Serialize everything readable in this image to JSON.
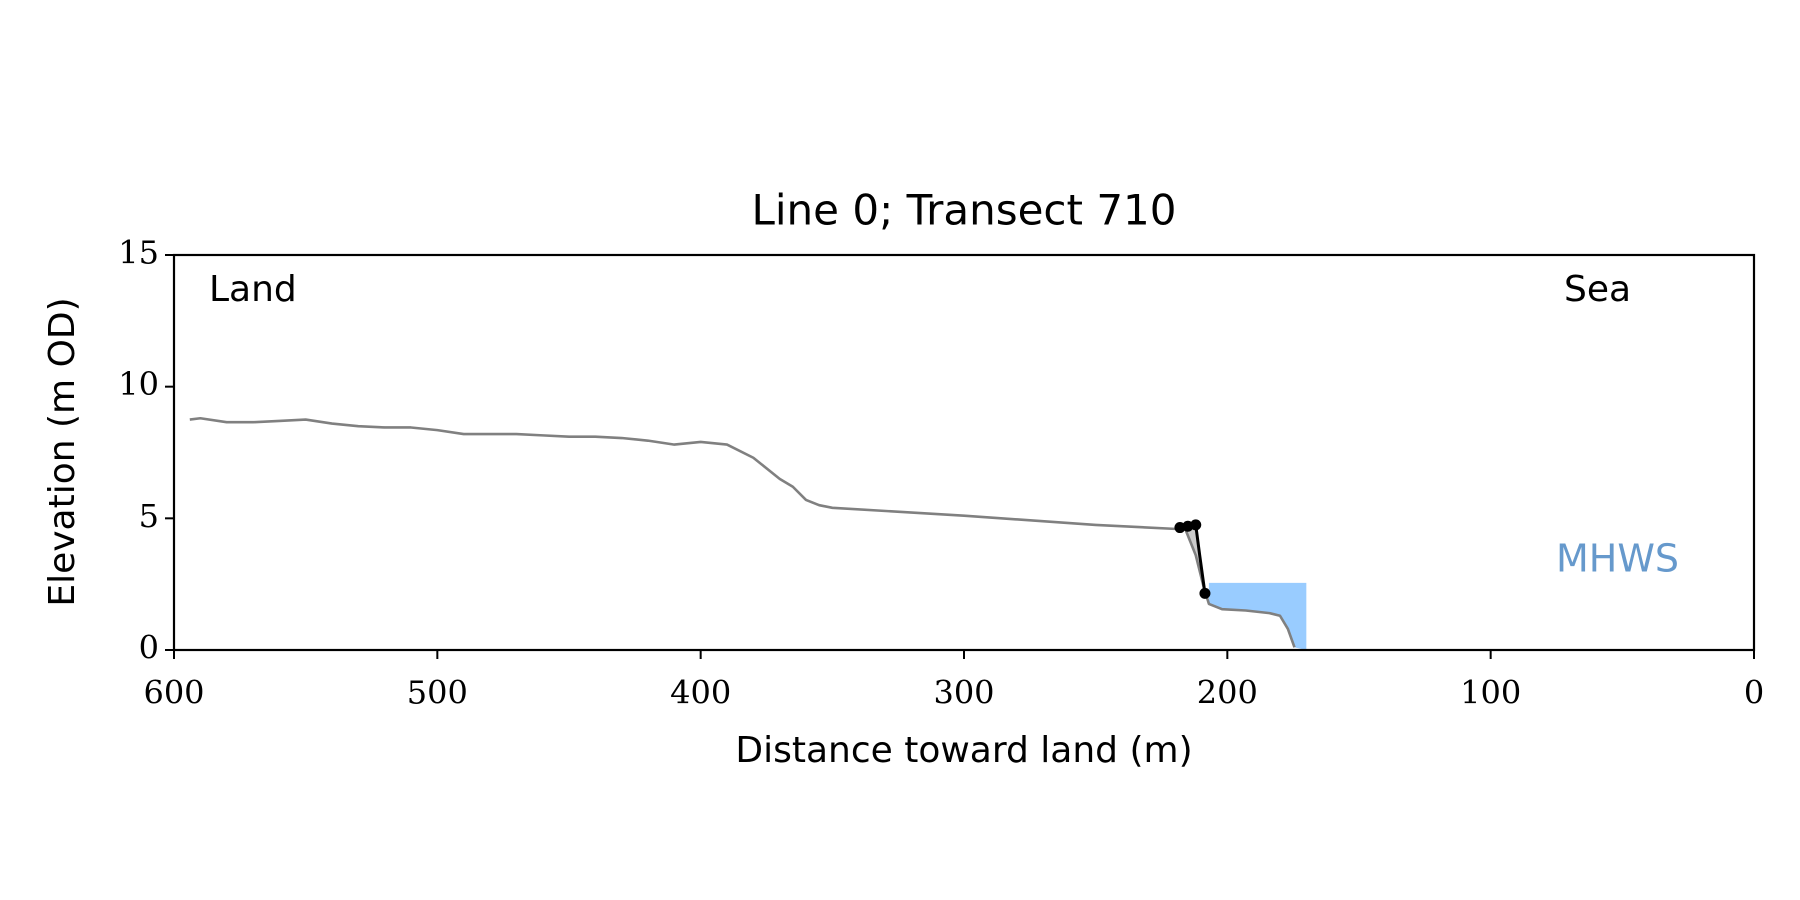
{
  "chart_data": {
    "type": "line",
    "title": "Line 0; Transect 710",
    "xlabel": "Distance toward land (m)",
    "ylabel": "Elevation (m OD)",
    "xlim": [
      600,
      0
    ],
    "xticks": [
      600,
      500,
      400,
      300,
      200,
      100,
      0
    ],
    "ylim": [
      0,
      15
    ],
    "yticks": [
      0,
      5,
      10,
      15
    ],
    "annotations": [
      "Land",
      "Sea"
    ],
    "series": [
      {
        "name": "profile",
        "color": "#808080",
        "x": [
          594,
          590,
          580,
          570,
          560,
          550,
          540,
          530,
          520,
          510,
          500,
          490,
          480,
          470,
          460,
          450,
          440,
          430,
          420,
          410,
          400,
          390,
          380,
          370,
          365,
          360,
          355,
          350,
          300,
          250,
          220,
          216,
          212,
          209,
          207,
          202,
          193,
          184,
          180,
          177,
          174.5
        ],
        "values": [
          8.75,
          8.8,
          8.65,
          8.65,
          8.7,
          8.75,
          8.6,
          8.5,
          8.45,
          8.45,
          8.35,
          8.2,
          8.2,
          8.2,
          8.15,
          8.1,
          8.1,
          8.05,
          7.95,
          7.8,
          7.9,
          7.8,
          7.3,
          6.5,
          6.2,
          5.7,
          5.5,
          5.4,
          5.1,
          4.75,
          4.6,
          4.6,
          3.6,
          2.4,
          1.75,
          1.55,
          1.5,
          1.4,
          1.3,
          0.8,
          0.1
        ]
      },
      {
        "name": "cliff",
        "color": "#000000",
        "x": [
          218,
          215,
          212,
          210.5,
          208.5
        ],
        "values": [
          4.65,
          4.7,
          4.75,
          3.6,
          2.15
        ]
      }
    ],
    "cliff_shade_color": "#cccccc",
    "mhws": {
      "label": "MHWS",
      "level": 2.55,
      "xrange": [
        207,
        170
      ],
      "color": "#99ccff",
      "label_color": "#6699cc"
    }
  }
}
